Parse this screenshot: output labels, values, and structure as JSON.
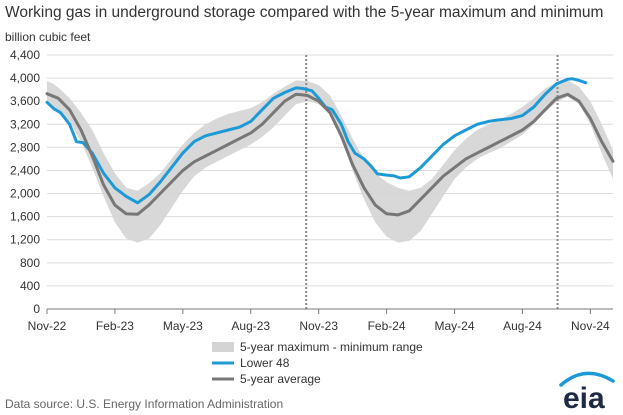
{
  "chart_data": {
    "type": "line",
    "title": "Working gas in underground storage compared with the 5-year maximum and minimum",
    "ylabel": "billion cubic feet",
    "xlabel": "",
    "source": "Data source:  U.S. Energy Information Administration",
    "logo_text": "eia",
    "ylim": [
      0,
      4400
    ],
    "yticks": [
      "0",
      "400",
      "800",
      "1,200",
      "1,600",
      "2,000",
      "2,400",
      "2,800",
      "3,200",
      "3,600",
      "4,000",
      "4,400"
    ],
    "xlim": [
      0,
      25
    ],
    "x_ticks": [
      {
        "x": 0,
        "label": "Nov-22"
      },
      {
        "x": 3,
        "label": "Feb-23"
      },
      {
        "x": 6,
        "label": "May-23"
      },
      {
        "x": 9,
        "label": "Aug-23"
      },
      {
        "x": 12,
        "label": "Nov-23"
      },
      {
        "x": 15,
        "label": "Feb-24"
      },
      {
        "x": 18,
        "label": "May-24"
      },
      {
        "x": 21,
        "label": "Aug-24"
      },
      {
        "x": 24,
        "label": "Nov-24"
      }
    ],
    "x_unit": "months since Nov-22",
    "grid": true,
    "legend_position": "bottom-center",
    "vertical_markers": [
      11.45,
      22.55
    ],
    "series": [
      {
        "name": "5-year maximum - minimum range",
        "type": "band",
        "color": "#d4d4d4",
        "x": [
          0,
          0.3,
          0.6,
          1,
          1.5,
          2,
          2.5,
          3,
          3.5,
          4,
          4.5,
          5,
          5.5,
          6,
          6.5,
          7,
          7.5,
          8,
          8.5,
          9,
          9.5,
          10,
          10.5,
          11,
          11.5,
          12,
          12.5,
          13,
          13.5,
          14,
          14.5,
          15,
          15.5,
          16,
          16.5,
          17,
          17.5,
          18,
          18.5,
          19,
          19.5,
          20,
          20.5,
          21,
          21.5,
          22,
          22.5,
          23,
          23.5,
          24,
          24.5,
          25
        ],
        "upper": [
          3950,
          3900,
          3800,
          3650,
          3400,
          3100,
          2700,
          2350,
          2100,
          2050,
          2180,
          2350,
          2600,
          2850,
          3050,
          3200,
          3300,
          3380,
          3430,
          3480,
          3580,
          3730,
          3850,
          3960,
          3950,
          3880,
          3700,
          3350,
          2950,
          2600,
          2350,
          2200,
          2100,
          2050,
          2100,
          2250,
          2500,
          2750,
          2950,
          3100,
          3200,
          3280,
          3380,
          3500,
          3650,
          3820,
          3920,
          3960,
          3850,
          3600,
          3200,
          2750
        ],
        "lower": [
          3550,
          3500,
          3400,
          3250,
          2900,
          2450,
          1950,
          1500,
          1220,
          1150,
          1220,
          1450,
          1750,
          2050,
          2300,
          2450,
          2550,
          2650,
          2750,
          2850,
          2980,
          3150,
          3350,
          3550,
          3600,
          3550,
          3380,
          2950,
          2400,
          1900,
          1500,
          1250,
          1150,
          1180,
          1350,
          1650,
          1950,
          2250,
          2450,
          2600,
          2700,
          2780,
          2900,
          3020,
          3200,
          3420,
          3580,
          3680,
          3550,
          3200,
          2700,
          2250
        ]
      },
      {
        "name": "Lower 48",
        "color": "#1d9ad6",
        "x": [
          0,
          0.3,
          0.6,
          1,
          1.3,
          1.6,
          2,
          2.5,
          3,
          3.5,
          4,
          4.5,
          5,
          5.5,
          6,
          6.5,
          7,
          7.5,
          8,
          8.5,
          9,
          9.5,
          10,
          10.5,
          11,
          11.3,
          11.7,
          12,
          12.3,
          12.6,
          13,
          13.3,
          13.6,
          14,
          14.3,
          14.6,
          15,
          15.3,
          15.6,
          16,
          16.5,
          17,
          17.5,
          18,
          18.5,
          19,
          19.5,
          20,
          20.5,
          21,
          21.5,
          22,
          22.5,
          23,
          23.2,
          23.5,
          23.8
        ],
        "y": [
          3580,
          3470,
          3400,
          3200,
          2900,
          2880,
          2700,
          2350,
          2100,
          1950,
          1840,
          1980,
          2200,
          2450,
          2700,
          2900,
          3000,
          3050,
          3100,
          3150,
          3250,
          3450,
          3650,
          3750,
          3830,
          3820,
          3780,
          3650,
          3500,
          3450,
          3200,
          2900,
          2700,
          2600,
          2480,
          2340,
          2320,
          2310,
          2270,
          2290,
          2450,
          2650,
          2850,
          3000,
          3100,
          3200,
          3250,
          3280,
          3300,
          3350,
          3500,
          3720,
          3900,
          3980,
          3990,
          3960,
          3920
        ]
      },
      {
        "name": "5-year average",
        "color": "#777777",
        "x": [
          0,
          0.5,
          1,
          1.5,
          2,
          2.5,
          3,
          3.5,
          4,
          4.5,
          5,
          5.5,
          6,
          6.5,
          7,
          7.5,
          8,
          8.5,
          9,
          9.5,
          10,
          10.5,
          11,
          11.5,
          12,
          12.5,
          13,
          13.5,
          14,
          14.5,
          15,
          15.5,
          16,
          16.5,
          17,
          17.5,
          18,
          18.5,
          19,
          19.5,
          20,
          20.5,
          21,
          21.5,
          22,
          22.5,
          23,
          23.5,
          24,
          24.5,
          25
        ],
        "y": [
          3730,
          3650,
          3450,
          3100,
          2650,
          2150,
          1800,
          1650,
          1640,
          1800,
          2000,
          2200,
          2400,
          2550,
          2650,
          2750,
          2850,
          2950,
          3050,
          3200,
          3400,
          3600,
          3720,
          3700,
          3600,
          3400,
          3000,
          2500,
          2100,
          1800,
          1650,
          1630,
          1700,
          1900,
          2100,
          2300,
          2450,
          2600,
          2700,
          2800,
          2900,
          3000,
          3100,
          3250,
          3450,
          3650,
          3720,
          3600,
          3300,
          2900,
          2560
        ]
      }
    ]
  }
}
